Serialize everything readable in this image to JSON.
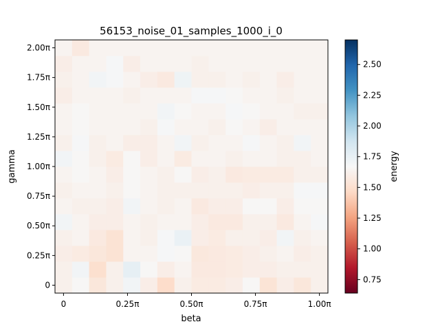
{
  "chart_data": {
    "type": "heatmap",
    "title": "56153_noise_01_samples_1000_i_0",
    "xlabel": "beta",
    "ylabel": "gamma",
    "colorbar_label": "energy",
    "colormap": "RdBu",
    "vmin": 0.64,
    "vmax": 2.7,
    "x_ticks": [
      {
        "value": 0,
        "label": "0"
      },
      {
        "value": 0.25,
        "label": "0.25π"
      },
      {
        "value": 0.5,
        "label": "0.50π"
      },
      {
        "value": 0.75,
        "label": "0.75π"
      },
      {
        "value": 1.0,
        "label": "1.00π"
      }
    ],
    "y_ticks": [
      {
        "value": 0,
        "label": "0"
      },
      {
        "value": 0.25,
        "label": "0.25π"
      },
      {
        "value": 0.5,
        "label": "0.50π"
      },
      {
        "value": 0.75,
        "label": "0.75π"
      },
      {
        "value": 1.0,
        "label": "1.00π"
      },
      {
        "value": 1.25,
        "label": "1.25π"
      },
      {
        "value": 1.5,
        "label": "1.50π"
      },
      {
        "value": 1.75,
        "label": "1.75π"
      },
      {
        "value": 2.0,
        "label": "2.00π"
      }
    ],
    "colorbar_ticks": [
      {
        "value": 0.75,
        "label": "0.75"
      },
      {
        "value": 1.0,
        "label": "1.00"
      },
      {
        "value": 1.25,
        "label": "1.25"
      },
      {
        "value": 1.5,
        "label": "1.50"
      },
      {
        "value": 1.75,
        "label": "1.75"
      },
      {
        "value": 2.0,
        "label": "2.00"
      },
      {
        "value": 2.25,
        "label": "2.25"
      },
      {
        "value": 2.5,
        "label": "2.50"
      }
    ],
    "x_range": [
      -0.0333,
      1.0333
    ],
    "y_range": [
      -0.0667,
      2.0667
    ],
    "x": [
      0,
      0.0667,
      0.1333,
      0.2,
      0.2667,
      0.3333,
      0.4,
      0.4667,
      0.5333,
      0.6,
      0.6667,
      0.7333,
      0.8,
      0.8667,
      0.9333,
      1.0
    ],
    "y": [
      0,
      0.1333,
      0.2667,
      0.4,
      0.5333,
      0.6667,
      0.8,
      0.9333,
      1.0667,
      1.2,
      1.3333,
      1.4667,
      1.6,
      1.7333,
      1.8667,
      2.0
    ],
    "z": [
      [
        1.62,
        1.66,
        1.55,
        1.62,
        1.7,
        1.6,
        1.48,
        1.62,
        1.58,
        1.58,
        1.6,
        1.66,
        1.53,
        1.6,
        1.55,
        1.62
      ],
      [
        1.62,
        1.7,
        1.5,
        1.62,
        1.76,
        1.66,
        1.6,
        1.64,
        1.57,
        1.57,
        1.58,
        1.6,
        1.6,
        1.62,
        1.62,
        1.62
      ],
      [
        1.6,
        1.58,
        1.55,
        1.52,
        1.64,
        1.64,
        1.68,
        1.66,
        1.56,
        1.57,
        1.58,
        1.6,
        1.62,
        1.64,
        1.6,
        1.62
      ],
      [
        1.62,
        1.64,
        1.57,
        1.52,
        1.64,
        1.62,
        1.68,
        1.74,
        1.6,
        1.58,
        1.62,
        1.62,
        1.6,
        1.7,
        1.62,
        1.64
      ],
      [
        1.7,
        1.64,
        1.6,
        1.6,
        1.64,
        1.62,
        1.64,
        1.64,
        1.6,
        1.57,
        1.57,
        1.62,
        1.62,
        1.57,
        1.64,
        1.68
      ],
      [
        1.64,
        1.62,
        1.62,
        1.6,
        1.7,
        1.64,
        1.62,
        1.64,
        1.57,
        1.6,
        1.6,
        1.66,
        1.66,
        1.6,
        1.66,
        1.66
      ],
      [
        1.62,
        1.64,
        1.64,
        1.62,
        1.66,
        1.64,
        1.62,
        1.62,
        1.62,
        1.62,
        1.62,
        1.6,
        1.62,
        1.62,
        1.68,
        1.68
      ],
      [
        1.64,
        1.66,
        1.64,
        1.6,
        1.66,
        1.64,
        1.62,
        1.66,
        1.6,
        1.62,
        1.57,
        1.58,
        1.58,
        1.58,
        1.62,
        1.62
      ],
      [
        1.7,
        1.66,
        1.62,
        1.58,
        1.66,
        1.6,
        1.64,
        1.58,
        1.64,
        1.64,
        1.62,
        1.64,
        1.64,
        1.62,
        1.62,
        1.64
      ],
      [
        1.62,
        1.68,
        1.62,
        1.64,
        1.6,
        1.6,
        1.64,
        1.7,
        1.62,
        1.64,
        1.64,
        1.68,
        1.64,
        1.62,
        1.7,
        1.64
      ],
      [
        1.64,
        1.66,
        1.64,
        1.64,
        1.64,
        1.62,
        1.68,
        1.64,
        1.64,
        1.62,
        1.66,
        1.64,
        1.6,
        1.64,
        1.64,
        1.64
      ],
      [
        1.64,
        1.66,
        1.64,
        1.64,
        1.64,
        1.64,
        1.7,
        1.66,
        1.64,
        1.64,
        1.68,
        1.66,
        1.64,
        1.64,
        1.62,
        1.62
      ],
      [
        1.6,
        1.64,
        1.64,
        1.64,
        1.62,
        1.64,
        1.64,
        1.64,
        1.68,
        1.68,
        1.66,
        1.64,
        1.64,
        1.62,
        1.64,
        1.64
      ],
      [
        1.62,
        1.64,
        1.7,
        1.68,
        1.64,
        1.6,
        1.57,
        1.72,
        1.62,
        1.62,
        1.64,
        1.62,
        1.64,
        1.6,
        1.64,
        1.64
      ],
      [
        1.6,
        1.64,
        1.64,
        1.68,
        1.6,
        1.64,
        1.64,
        1.64,
        1.62,
        1.64,
        1.64,
        1.64,
        1.64,
        1.64,
        1.64,
        1.64
      ],
      [
        1.64,
        1.57,
        1.64,
        1.64,
        1.64,
        1.64,
        1.64,
        1.64,
        1.64,
        1.64,
        1.64,
        1.64,
        1.64,
        1.64,
        1.64,
        1.64
      ]
    ]
  }
}
